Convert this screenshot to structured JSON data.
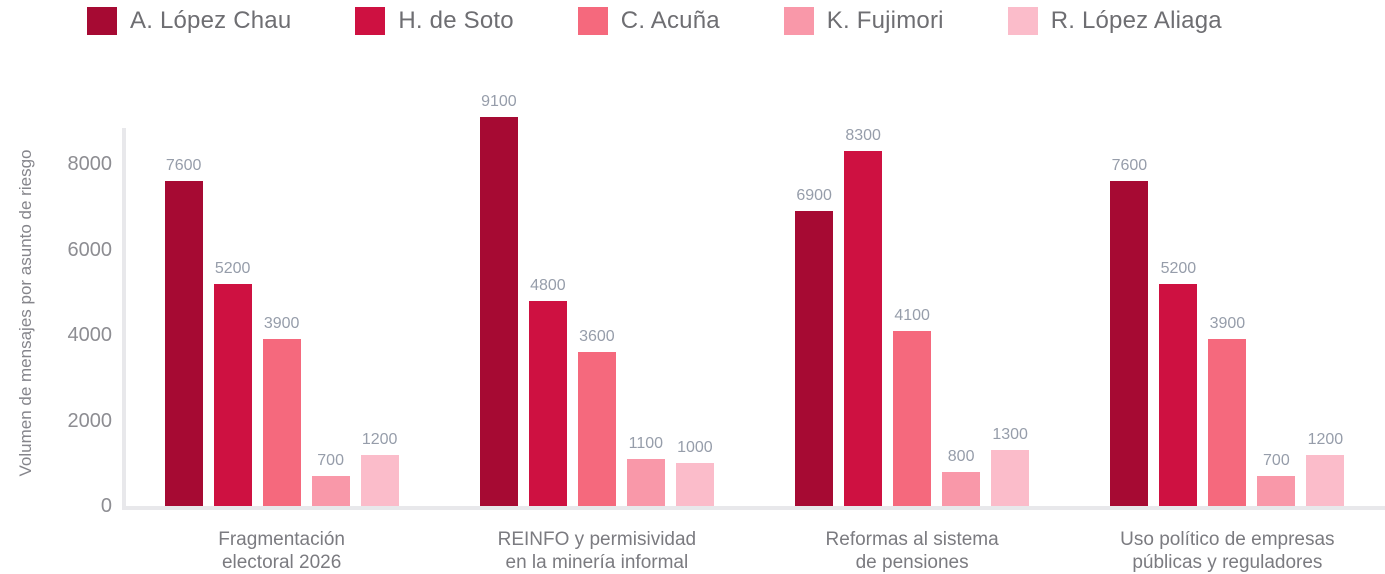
{
  "chart_data": {
    "type": "bar",
    "title": "",
    "categories": [
      "Fragmentación electoral 2026",
      "REINFO y permisividad en la minería informal",
      "Reformas al sistema de pensiones",
      "Uso político de empresas públicas y reguladores"
    ],
    "categories_lines": [
      [
        "Fragmentación",
        "electoral 2026"
      ],
      [
        "REINFO y permisividad",
        "en la minería informal"
      ],
      [
        "Reformas al sistema",
        "de pensiones"
      ],
      [
        "Uso político de empresas",
        "públicas y reguladores"
      ]
    ],
    "series": [
      {
        "name": "A. López Chau",
        "color": "#A60A33",
        "values": [
          7600,
          9100,
          6900,
          7600
        ]
      },
      {
        "name": "H. de Soto",
        "color": "#CE1141",
        "values": [
          5200,
          4800,
          8300,
          5200
        ]
      },
      {
        "name": "C. Acuña",
        "color": "#F5697D",
        "values": [
          3900,
          3600,
          4100,
          3900
        ]
      },
      {
        "name": "K. Fujimori",
        "color": "#F998A9",
        "values": [
          700,
          1100,
          800,
          700
        ]
      },
      {
        "name": "R. López Aliaga",
        "color": "#FBBCCA",
        "values": [
          1200,
          1000,
          1300,
          1200
        ]
      }
    ],
    "bar_value_labels": [
      [
        "7600",
        "9100",
        "6900",
        "7600"
      ],
      [
        "5200",
        "4800",
        "8300",
        "5200"
      ],
      [
        "3900",
        "3600",
        "4100",
        "3900"
      ],
      [
        "700",
        "1100",
        "800",
        "700"
      ],
      [
        "1200",
        "1000",
        "1300",
        "1200"
      ]
    ],
    "xlabel": "",
    "ylabel": "Volumen de mensajes por asunto de riesgo",
    "ylim": [
      0,
      9500
    ],
    "yticks": [
      0,
      2000,
      4000,
      6000,
      8000
    ],
    "ytick_labels": [
      "0",
      "2000",
      "4000",
      "6000",
      "8000"
    ],
    "grid": false,
    "legend_position": "top"
  },
  "colors": {
    "value_label": "#969daa",
    "tick_label": "#8d8d92",
    "axis_line": "#e8e8eb",
    "legend_text": "#6e6e72",
    "category_label": "#7b7b80",
    "background": "#ffffff"
  }
}
